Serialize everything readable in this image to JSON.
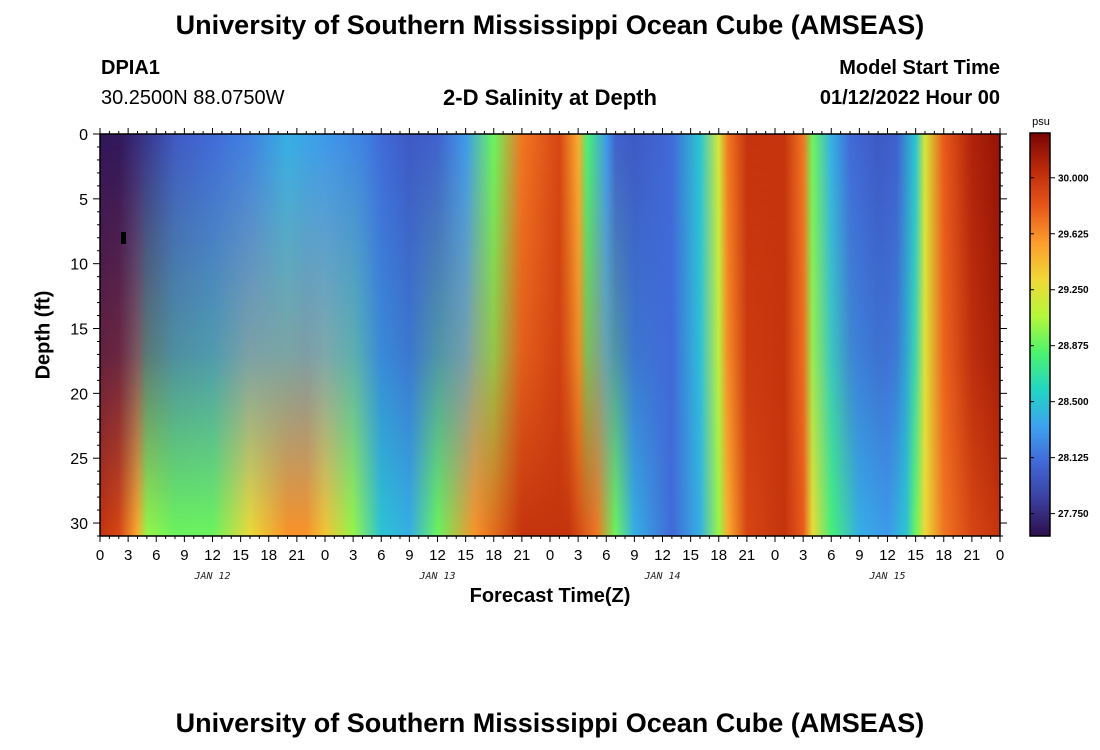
{
  "title": "University of Southern Mississippi Ocean Cube (AMSEAS)",
  "footer_title": "University of Southern Mississippi Ocean Cube (AMSEAS)",
  "station": {
    "id": "DPIA1",
    "coords": "30.2500N  88.0750W"
  },
  "plot_title": "2-D Salinity at Depth",
  "model_start": {
    "label": "Model Start Time",
    "value": "01/12/2022 Hour 00"
  },
  "colorbar": {
    "unit": "psu",
    "ticks": [
      "30.000",
      "29.625",
      "29.250",
      "28.875",
      "28.500",
      "28.125",
      "27.750"
    ],
    "tick_values": [
      30.0,
      29.625,
      29.25,
      28.875,
      28.5,
      28.125,
      27.75
    ],
    "range": [
      27.6,
      30.3
    ],
    "colors": [
      "#2d0d4a",
      "#3b3f9e",
      "#4168d8",
      "#3da2f0",
      "#22d6c4",
      "#4cf36d",
      "#b5f73a",
      "#f0d838",
      "#fd9d2c",
      "#e8561a",
      "#bb2a0b",
      "#7a0403"
    ]
  },
  "chart_data": {
    "type": "heatmap",
    "title": "2-D Salinity at Depth",
    "xlabel": "Forecast Time(Z)",
    "ylabel": "Depth (ft)",
    "x_ticks": [
      "0",
      "3",
      "6",
      "9",
      "12",
      "15",
      "18",
      "21",
      "0",
      "3",
      "6",
      "9",
      "12",
      "15",
      "18",
      "21",
      "0",
      "3",
      "6",
      "9",
      "12",
      "15",
      "18",
      "21",
      "0",
      "3",
      "6",
      "9",
      "12",
      "15",
      "18",
      "21",
      "0"
    ],
    "x_range_hours": [
      0,
      96
    ],
    "day_labels": [
      {
        "hour": 12,
        "label": "JAN 12"
      },
      {
        "hour": 36,
        "label": "JAN 13"
      },
      {
        "hour": 60,
        "label": "JAN 14"
      },
      {
        "hour": 84,
        "label": "JAN 15"
      }
    ],
    "y_ticks": [
      "0",
      "5",
      "10",
      "15",
      "20",
      "25",
      "30"
    ],
    "y_tick_values": [
      0,
      5,
      10,
      15,
      20,
      25,
      30
    ],
    "ylim": [
      0,
      31
    ],
    "z_units": "psu",
    "z_range": [
      27.6,
      30.3
    ],
    "surface_profile_hours": [
      0,
      2,
      4,
      8,
      12,
      16,
      20,
      24,
      28,
      30,
      33,
      36,
      39,
      42,
      45,
      49,
      51,
      52,
      54,
      55,
      57,
      61,
      64,
      66,
      67,
      69,
      73,
      75,
      76,
      78,
      80,
      83,
      85,
      87,
      88,
      90,
      93,
      96
    ],
    "surface_profile_psu": [
      27.65,
      27.65,
      27.75,
      28.0,
      28.1,
      28.2,
      28.4,
      28.3,
      28.2,
      28.1,
      28.0,
      28.05,
      28.3,
      28.9,
      29.7,
      29.9,
      29.5,
      28.8,
      28.3,
      28.05,
      28.0,
      28.1,
      28.5,
      29.2,
      29.7,
      30.0,
      30.0,
      29.7,
      28.9,
      28.4,
      28.1,
      28.0,
      28.05,
      28.5,
      29.2,
      29.8,
      30.1,
      30.2
    ],
    "bottom_profile_hours": [
      0,
      2,
      4,
      5,
      8,
      12,
      16,
      20,
      22,
      24,
      27,
      30,
      33,
      36,
      40,
      45,
      50,
      53,
      55,
      57,
      61,
      64,
      66,
      67,
      69,
      73,
      75,
      76,
      78,
      81,
      84,
      86,
      87,
      88,
      90,
      93,
      96
    ],
    "bottom_profile_psu": [
      30.0,
      29.9,
      29.5,
      29.0,
      28.9,
      28.9,
      29.3,
      29.6,
      29.6,
      29.4,
      29.0,
      28.5,
      28.4,
      28.9,
      29.6,
      30.0,
      30.0,
      29.7,
      28.9,
      28.4,
      28.1,
      28.4,
      29.0,
      29.5,
      29.9,
      30.0,
      29.8,
      29.3,
      28.8,
      28.4,
      28.3,
      28.5,
      28.9,
      29.3,
      29.7,
      29.9,
      30.0
    ]
  }
}
